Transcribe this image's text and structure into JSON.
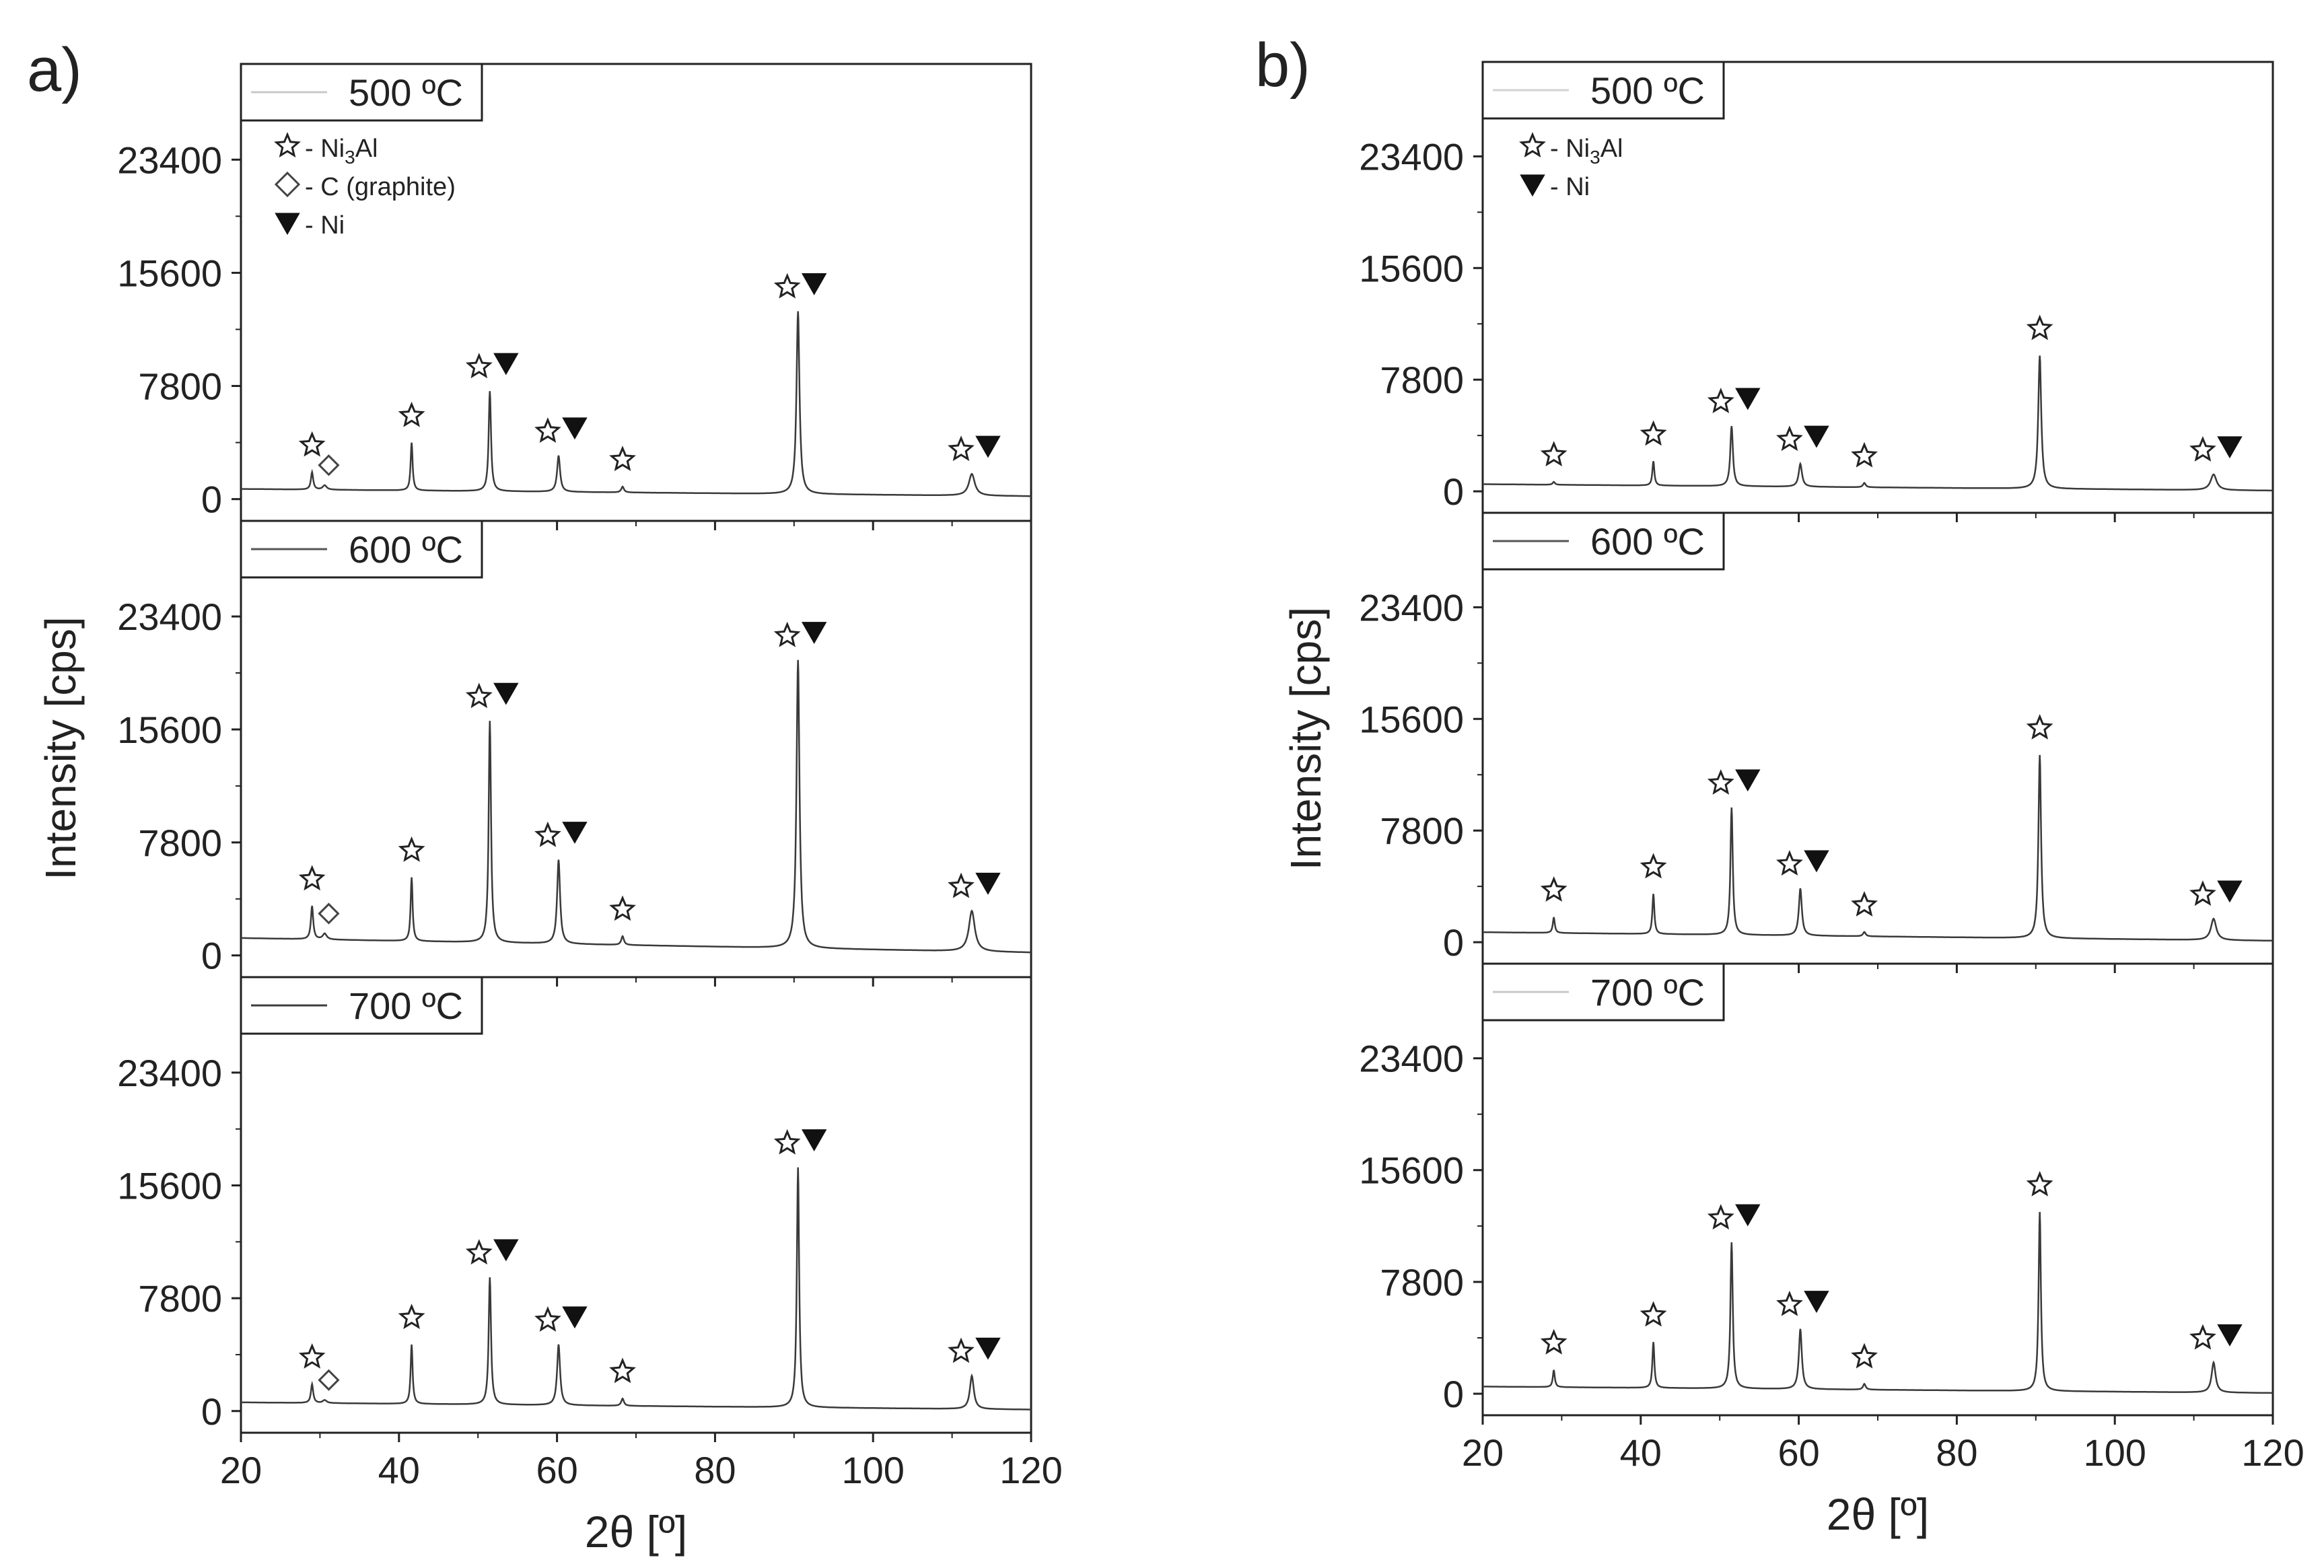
{
  "figure": {
    "xlabel": "2θ [º]",
    "ylabel": "Intensity [cps]",
    "x_ticks": [
      20,
      40,
      60,
      80,
      100,
      120
    ],
    "y_ticks": [
      0,
      7800,
      15600,
      23400
    ]
  },
  "panels": [
    {
      "label": "a)",
      "legend": [
        {
          "symbol": "star",
          "text": "- Ni",
          "sub": "3",
          "tail": "Al"
        },
        {
          "symbol": "diamond",
          "text": "- C (graphite)",
          "sub": "",
          "tail": ""
        },
        {
          "symbol": "triangle",
          "text": "- Ni",
          "sub": "",
          "tail": ""
        }
      ]
    },
    {
      "label": "b)",
      "legend": [
        {
          "symbol": "star",
          "text": "- Ni",
          "sub": "3",
          "tail": "Al"
        },
        {
          "symbol": "triangle",
          "text": "- Ni",
          "sub": "",
          "tail": ""
        }
      ]
    }
  ],
  "chart_data": [
    {
      "type": "line",
      "panel": "a)",
      "xlim": [
        20,
        120
      ],
      "ylim": [
        -1500,
        30000
      ],
      "subplots": [
        {
          "legend": "500 ºC",
          "line_color": "#c8c8c8",
          "baseline_start": 700,
          "baseline_end": 200,
          "peaks": [
            {
              "x": 29.0,
              "y": 1200,
              "w": 0.35,
              "markers": [
                "star"
              ]
            },
            {
              "x": 30.6,
              "y": 300,
              "w": 0.6,
              "markers": [
                "diamond"
              ]
            },
            {
              "x": 41.6,
              "y": 3300,
              "w": 0.3,
              "markers": [
                "star"
              ]
            },
            {
              "x": 51.5,
              "y": 6900,
              "w": 0.35,
              "markers": [
                "star",
                "triangle"
              ]
            },
            {
              "x": 60.2,
              "y": 2500,
              "w": 0.45,
              "markers": [
                "star",
                "triangle"
              ]
            },
            {
              "x": 68.3,
              "y": 400,
              "w": 0.4,
              "markers": [
                "star"
              ]
            },
            {
              "x": 90.5,
              "y": 12600,
              "w": 0.45,
              "markers": [
                "star",
                "triangle"
              ]
            },
            {
              "x": 112.5,
              "y": 1500,
              "w": 0.9,
              "markers": [
                "star",
                "triangle"
              ]
            }
          ]
        },
        {
          "legend": "600 ºC",
          "line_color": "#555555",
          "baseline_start": 1200,
          "baseline_end": 200,
          "peaks": [
            {
              "x": 29.0,
              "y": 2300,
              "w": 0.35,
              "markers": [
                "star"
              ]
            },
            {
              "x": 30.6,
              "y": 400,
              "w": 0.6,
              "markers": [
                "diamond"
              ]
            },
            {
              "x": 41.6,
              "y": 4400,
              "w": 0.3,
              "markers": [
                "star"
              ]
            },
            {
              "x": 51.5,
              "y": 15300,
              "w": 0.35,
              "markers": [
                "star",
                "triangle"
              ]
            },
            {
              "x": 60.2,
              "y": 5800,
              "w": 0.45,
              "markers": [
                "star",
                "triangle"
              ]
            },
            {
              "x": 68.3,
              "y": 600,
              "w": 0.4,
              "markers": [
                "star"
              ]
            },
            {
              "x": 90.5,
              "y": 19900,
              "w": 0.45,
              "markers": [
                "star",
                "triangle"
              ]
            },
            {
              "x": 112.5,
              "y": 2800,
              "w": 0.9,
              "markers": [
                "star",
                "triangle"
              ]
            }
          ]
        },
        {
          "legend": "700 ºC",
          "line_color": "#3c3c3c",
          "baseline_start": 600,
          "baseline_end": 100,
          "peaks": [
            {
              "x": 29.0,
              "y": 1300,
              "w": 0.35,
              "markers": [
                "star"
              ]
            },
            {
              "x": 30.6,
              "y": 200,
              "w": 0.6,
              "markers": [
                "diamond"
              ]
            },
            {
              "x": 41.6,
              "y": 4100,
              "w": 0.3,
              "markers": [
                "star"
              ]
            },
            {
              "x": 51.5,
              "y": 8800,
              "w": 0.35,
              "markers": [
                "star",
                "triangle"
              ]
            },
            {
              "x": 60.2,
              "y": 4200,
              "w": 0.45,
              "markers": [
                "star",
                "triangle"
              ]
            },
            {
              "x": 68.3,
              "y": 500,
              "w": 0.4,
              "markers": [
                "star"
              ]
            },
            {
              "x": 90.5,
              "y": 16600,
              "w": 0.35,
              "markers": [
                "star",
                "triangle"
              ]
            },
            {
              "x": 112.5,
              "y": 2300,
              "w": 0.6,
              "markers": [
                "star",
                "triangle"
              ]
            }
          ]
        }
      ]
    },
    {
      "type": "line",
      "panel": "b)",
      "xlim": [
        20,
        120
      ],
      "ylim": [
        -1500,
        30000
      ],
      "subplots": [
        {
          "legend": "500 ºC",
          "line_color": "#d2d2d2",
          "baseline_start": 500,
          "baseline_end": 50,
          "peaks": [
            {
              "x": 29.0,
              "y": 200,
              "w": 0.35,
              "markers": [
                "star"
              ]
            },
            {
              "x": 41.6,
              "y": 1700,
              "w": 0.3,
              "markers": [
                "star"
              ]
            },
            {
              "x": 51.5,
              "y": 4200,
              "w": 0.4,
              "markers": [
                "star",
                "triangle"
              ]
            },
            {
              "x": 60.2,
              "y": 1600,
              "w": 0.5,
              "markers": [
                "star",
                "triangle"
              ]
            },
            {
              "x": 68.3,
              "y": 300,
              "w": 0.4,
              "markers": [
                "star"
              ]
            },
            {
              "x": 90.5,
              "y": 9300,
              "w": 0.45,
              "markers": [
                "star"
              ]
            },
            {
              "x": 112.5,
              "y": 1100,
              "w": 0.9,
              "markers": [
                "star",
                "triangle"
              ]
            }
          ]
        },
        {
          "legend": "600 ºC",
          "line_color": "#555555",
          "baseline_start": 700,
          "baseline_end": 100,
          "peaks": [
            {
              "x": 29.0,
              "y": 1100,
              "w": 0.3,
              "markers": [
                "star"
              ]
            },
            {
              "x": 41.6,
              "y": 2800,
              "w": 0.3,
              "markers": [
                "star"
              ]
            },
            {
              "x": 51.5,
              "y": 8900,
              "w": 0.35,
              "markers": [
                "star",
                "triangle"
              ]
            },
            {
              "x": 60.2,
              "y": 3300,
              "w": 0.45,
              "markers": [
                "star",
                "triangle"
              ]
            },
            {
              "x": 68.3,
              "y": 300,
              "w": 0.4,
              "markers": [
                "star"
              ]
            },
            {
              "x": 90.5,
              "y": 12800,
              "w": 0.4,
              "markers": [
                "star"
              ]
            },
            {
              "x": 112.5,
              "y": 1500,
              "w": 0.8,
              "markers": [
                "star",
                "triangle"
              ]
            }
          ]
        },
        {
          "legend": "700 ºC",
          "line_color": "#c8c8c8",
          "baseline_start": 500,
          "baseline_end": 50,
          "peaks": [
            {
              "x": 29.0,
              "y": 1200,
              "w": 0.3,
              "markers": [
                "star"
              ]
            },
            {
              "x": 41.6,
              "y": 3200,
              "w": 0.3,
              "markers": [
                "star"
              ]
            },
            {
              "x": 51.5,
              "y": 10200,
              "w": 0.35,
              "markers": [
                "star",
                "triangle"
              ]
            },
            {
              "x": 60.2,
              "y": 4200,
              "w": 0.45,
              "markers": [
                "star",
                "triangle"
              ]
            },
            {
              "x": 68.3,
              "y": 400,
              "w": 0.4,
              "markers": [
                "star"
              ]
            },
            {
              "x": 90.5,
              "y": 12500,
              "w": 0.35,
              "markers": [
                "star"
              ]
            },
            {
              "x": 112.5,
              "y": 2100,
              "w": 0.6,
              "markers": [
                "star",
                "triangle"
              ]
            }
          ]
        }
      ]
    }
  ]
}
